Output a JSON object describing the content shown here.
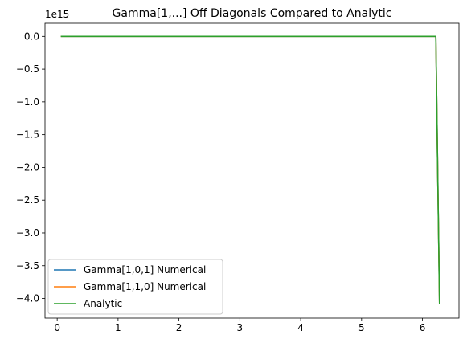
{
  "chart_data": {
    "type": "line",
    "title": "Gamma[1,...] Off Diagonals Compared to Analytic",
    "xlabel": "",
    "ylabel": "",
    "offset_label": "1e15",
    "xlim": [
      -0.2,
      6.6
    ],
    "ylim": [
      -4.3,
      0.2
    ],
    "xticks": [
      0,
      1,
      2,
      3,
      4,
      5,
      6
    ],
    "xtick_labels": [
      "0",
      "1",
      "2",
      "3",
      "4",
      "5",
      "6"
    ],
    "yticks": [
      0.0,
      -0.5,
      -1.0,
      -1.5,
      -2.0,
      -2.5,
      -3.0,
      -3.5,
      -4.0
    ],
    "ytick_labels": [
      "0.0",
      "−0.5",
      "−1.0",
      "−1.5",
      "−2.0",
      "−2.5",
      "−3.0",
      "−3.5",
      "−4.0"
    ],
    "grid": false,
    "legend_position": "lower-left",
    "series": [
      {
        "name": "Gamma[1,0,1] Numerical",
        "color": "#1f77b4",
        "x": [
          0.06,
          1.0,
          2.0,
          3.0,
          4.0,
          5.0,
          6.0,
          6.22,
          6.28
        ],
        "y": [
          0,
          0,
          0,
          0,
          0,
          0,
          0,
          0,
          -4.08
        ]
      },
      {
        "name": "Gamma[1,1,0] Numerical",
        "color": "#ff7f0e",
        "x": [
          0.06,
          1.0,
          2.0,
          3.0,
          4.0,
          5.0,
          6.0,
          6.22,
          6.28
        ],
        "y": [
          0,
          0,
          0,
          0,
          0,
          0,
          0,
          0,
          -4.08
        ]
      },
      {
        "name": "Analytic",
        "color": "#2ca02c",
        "x": [
          0.06,
          1.0,
          2.0,
          3.0,
          4.0,
          5.0,
          6.0,
          6.22,
          6.28
        ],
        "y": [
          0,
          0,
          0,
          0,
          0,
          0,
          0,
          0,
          -4.08
        ]
      }
    ]
  }
}
